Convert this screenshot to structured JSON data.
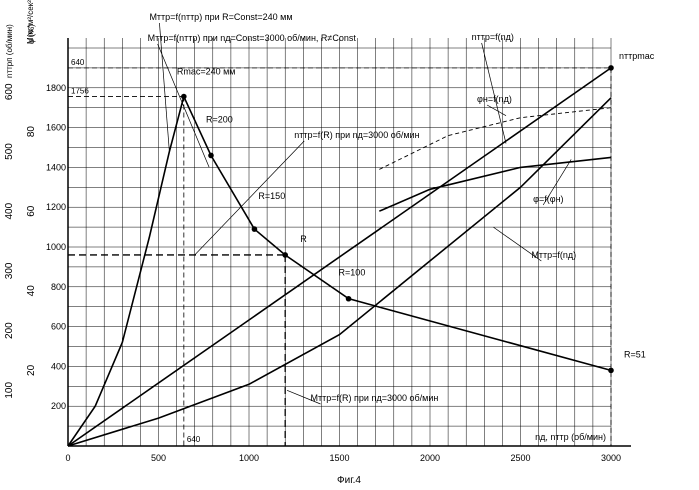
{
  "chart_data": {
    "type": "line",
    "figure_caption": "Фиг.4",
    "xlabel": "nд, nттр (об/мин)",
    "xlim": [
      0,
      3000
    ],
    "x_ticks": [
      0,
      500,
      1000,
      1500,
      2000,
      2500,
      3000
    ],
    "ylim": [
      0,
      2000
    ],
    "axes": [
      {
        "label": "M(кг*м²/сек²)",
        "ticks": [
          200,
          400,
          600,
          800,
          1000,
          1200,
          1400,
          1600,
          1800
        ]
      },
      {
        "label": "φ (%)",
        "ticks": [
          20,
          40,
          60,
          80
        ]
      },
      {
        "label": "nттрп (об/мин)",
        "ticks": [
          100,
          200,
          300,
          400,
          500,
          600
        ]
      }
    ],
    "reference_labels": {
      "y640": "640",
      "y1756": "1756",
      "x640": "640"
    },
    "series": [
      {
        "name": "Mттр=f(nттр) при R=Const=240 мм",
        "x": [
          0,
          150,
          300,
          450,
          560,
          640
        ],
        "y": [
          0,
          200,
          520,
          1050,
          1480,
          1756
        ]
      },
      {
        "name": "Mттр=f(nттр) при nд=Const=3000 об/мин, R≠Const",
        "x": [
          640,
          790,
          1030,
          1200,
          1550,
          3000
        ],
        "y": [
          1756,
          1460,
          1090,
          960,
          740,
          380
        ]
      },
      {
        "name": "nттр=f(nд)",
        "x": [
          0,
          3000
        ],
        "y": [
          0,
          1900
        ]
      },
      {
        "name": "Mттр=f(nд)",
        "x": [
          0,
          500,
          1000,
          1500,
          2000,
          2500,
          3000
        ],
        "y": [
          0,
          140,
          310,
          560,
          930,
          1300,
          1750
        ]
      },
      {
        "name": "φ=f(φн)",
        "x": [
          1720,
          2000,
          2500,
          3000
        ],
        "y": [
          1180,
          1290,
          1400,
          1450
        ]
      },
      {
        "name": "φн=f(nд)",
        "x": [
          1720,
          2100,
          2500,
          3000
        ],
        "y": [
          1390,
          1560,
          1650,
          1700
        ]
      }
    ],
    "point_labels": [
      {
        "text": "Rmac=240 мм",
        "x": 640,
        "y": 1756
      },
      {
        "text": "R=200",
        "x": 790,
        "y": 1460
      },
      {
        "text": "R=150",
        "x": 1030,
        "y": 1090
      },
      {
        "text": "R",
        "x": 1200,
        "y": 960
      },
      {
        "text": "R=100",
        "x": 1550,
        "y": 740
      },
      {
        "text": "R=51",
        "x": 3000,
        "y": 380
      },
      {
        "text": "nттр^mac",
        "x": 3000,
        "y": 1900
      }
    ],
    "callouts": [
      "Mттр=f(nттр) при R=Const=240 мм",
      "Mттр=f(nттр) при nд=Const=3000 об/мин, R≠Const",
      "nттр=f(R) при nд=3000 об/мин",
      "Mттр=f(R) при nд=3000 об/мин",
      "nттр=f(nд)",
      "φн=f(nд)",
      "φ=f(φн)",
      "Mттр=f(nд)"
    ],
    "grid": true,
    "colors": {
      "lines": "#000000",
      "background": "#ffffff"
    }
  }
}
